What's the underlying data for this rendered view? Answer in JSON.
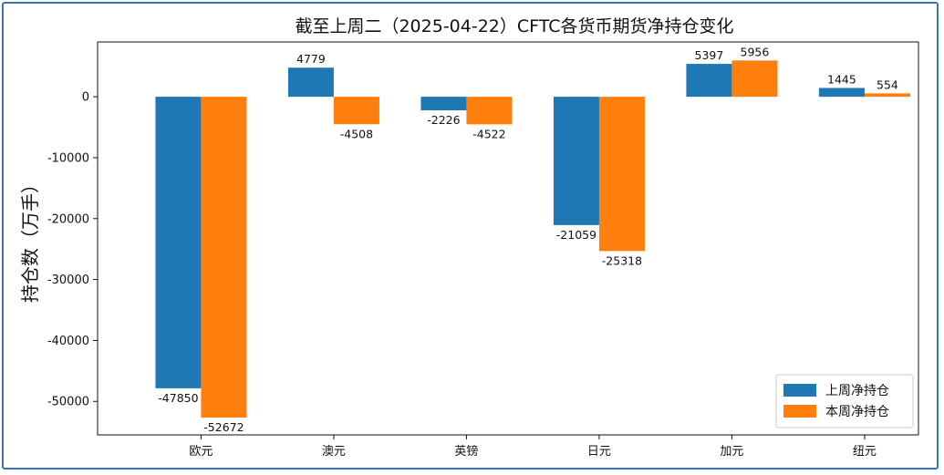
{
  "chart_data": {
    "type": "bar",
    "title": "截至上周二（2025-04-22）CFTC各货币期货净持仓变化",
    "xlabel": "",
    "ylabel": "持仓数（万手）",
    "categories": [
      "欧元",
      "澳元",
      "英镑",
      "日元",
      "加元",
      "纽元"
    ],
    "series": [
      {
        "name": "上周净持仓",
        "color": "#1f77b4",
        "values": [
          -47850,
          4779,
          -2226,
          -21059,
          5397,
          1445
        ]
      },
      {
        "name": "本周净持仓",
        "color": "#ff7f0e",
        "values": [
          -52672,
          -4508,
          -4522,
          -25318,
          5956,
          554
        ]
      }
    ],
    "ylim": [
      -55500,
      9000
    ],
    "yticks": [
      0,
      -10000,
      -20000,
      -30000,
      -40000,
      -50000
    ],
    "grid": false,
    "legend": "lower-right"
  }
}
